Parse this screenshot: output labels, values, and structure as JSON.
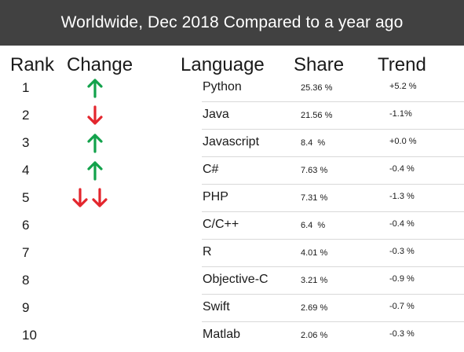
{
  "title": "Worldwide, Dec 2018 Compared to a year ago",
  "columns": {
    "rank": "Rank",
    "change": "Change",
    "language": "Language",
    "share": "Share",
    "trend": "Trend"
  },
  "colors": {
    "header_bg": "#414141",
    "up_arrow": "#12a24b",
    "down_arrow": "#e3262d"
  },
  "chart_data": {
    "type": "table",
    "title": "Worldwide, Dec 2018 Compared to a year ago",
    "headers": [
      "Rank",
      "Change",
      "Language",
      "Share",
      "Trend"
    ],
    "rows": [
      {
        "rank": "1",
        "change": [
          "up"
        ],
        "language": "Python",
        "share": "25.36 %",
        "trend": "+5.2 %"
      },
      {
        "rank": "2",
        "change": [
          "down"
        ],
        "language": "Java",
        "share": "21.56 %",
        "trend": "-1.1%"
      },
      {
        "rank": "3",
        "change": [
          "up"
        ],
        "language": "Javascript",
        "share": "8.4  %",
        "trend": "+0.0 %"
      },
      {
        "rank": "4",
        "change": [
          "up"
        ],
        "language": "C#",
        "share": "7.63 %",
        "trend": "-0.4 %"
      },
      {
        "rank": "5",
        "change": [
          "down",
          "down"
        ],
        "language": "PHP",
        "share": "7.31 %",
        "trend": "-1.3 %"
      },
      {
        "rank": "6",
        "change": [],
        "language": "C/C++",
        "share": "6.4  %",
        "trend": "-0.4 %"
      },
      {
        "rank": "7",
        "change": [],
        "language": "R",
        "share": "4.01 %",
        "trend": "-0.3 %"
      },
      {
        "rank": "8",
        "change": [],
        "language": "Objective-C",
        "share": "3.21 %",
        "trend": "-0.9 %"
      },
      {
        "rank": "9",
        "change": [],
        "language": "Swift",
        "share": "2.69 %",
        "trend": "-0.7 %"
      },
      {
        "rank": "10",
        "change": [],
        "language": "Matlab",
        "share": "2.06 %",
        "trend": "-0.3 %"
      }
    ]
  }
}
